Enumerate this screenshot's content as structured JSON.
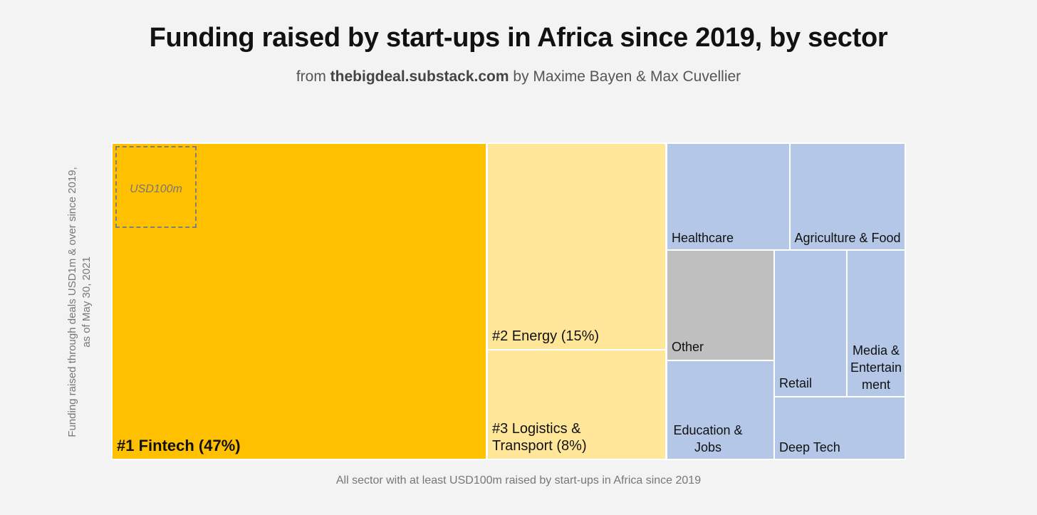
{
  "header": {
    "title": "Funding raised by start-ups in Africa since 2019, by sector",
    "subtitle_prefix": "from ",
    "subtitle_source": "thebigdeal.substack.com",
    "subtitle_suffix": " by Maxime Bayen & Max Cuvellier"
  },
  "y_axis_label": "Funding raised through deals USD1m & over since 2019, as of May 30, 2021",
  "footnote": "All sector with at least USD100m raised by start-ups in Africa since 2019",
  "scale_reference": {
    "label": "USD100m",
    "value_musd": 100
  },
  "colors": {
    "fintech": "#ffc000",
    "energy_logistics": "#ffe699",
    "other_sectors": "#b4c7e7",
    "other": "#bfbfbf",
    "border": "#ffffff"
  },
  "chart_data": {
    "type": "treemap",
    "title": "Funding raised by start-ups in Africa since 2019, by sector",
    "unit": "share of funding raised",
    "sectors": [
      {
        "label": "#1 Fintech (47%)",
        "name": "Fintech",
        "rank": 1,
        "share_pct": 47
      },
      {
        "label": "#2 Energy (15%)",
        "name": "Energy",
        "rank": 2,
        "share_pct": 15
      },
      {
        "label": "#3 Logistics & Transport (8%)",
        "name": "Logistics & Transport",
        "rank": 3,
        "share_pct": 8
      },
      {
        "label": "Healthcare",
        "name": "Healthcare"
      },
      {
        "label": "Agriculture & Food",
        "name": "Agriculture & Food"
      },
      {
        "label": "Other",
        "name": "Other"
      },
      {
        "label": "Retail",
        "name": "Retail"
      },
      {
        "label": "Media & Entertainment",
        "name": "Media & Entertainment"
      },
      {
        "label": "Education & Jobs",
        "name": "Education & Jobs"
      },
      {
        "label": "Deep Tech",
        "name": "Deep Tech"
      }
    ]
  }
}
